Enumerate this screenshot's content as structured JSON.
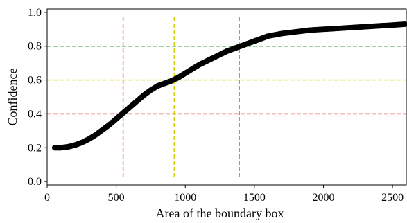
{
  "chart_data": {
    "type": "scatter",
    "title": "",
    "xlabel": "Area of the boundary box",
    "ylabel": "Confidence",
    "xlim": [
      0,
      2600
    ],
    "ylim": [
      -0.02,
      1.02
    ],
    "grid": false,
    "x_ticks": [
      0,
      500,
      1000,
      1500,
      2000,
      2500
    ],
    "x_tick_labels": [
      "0",
      "500",
      "1000",
      "1500",
      "2000",
      "2500"
    ],
    "y_ticks": [
      0.0,
      0.2,
      0.4,
      0.6,
      0.8,
      1.0
    ],
    "y_tick_labels": [
      "0.0",
      "0.2",
      "0.4",
      "0.6",
      "0.8",
      "1.0"
    ],
    "marker_color": "#000000",
    "series": [
      {
        "points": [
          [
            55,
            0.2
          ],
          [
            100,
            0.2
          ],
          [
            150,
            0.205
          ],
          [
            200,
            0.215
          ],
          [
            250,
            0.23
          ],
          [
            300,
            0.25
          ],
          [
            350,
            0.275
          ],
          [
            400,
            0.305
          ],
          [
            450,
            0.335
          ],
          [
            500,
            0.37
          ],
          [
            550,
            0.405
          ],
          [
            600,
            0.44
          ],
          [
            650,
            0.475
          ],
          [
            700,
            0.51
          ],
          [
            750,
            0.54
          ],
          [
            800,
            0.565
          ],
          [
            850,
            0.58
          ],
          [
            900,
            0.595
          ],
          [
            950,
            0.615
          ],
          [
            1000,
            0.64
          ],
          [
            1050,
            0.665
          ],
          [
            1100,
            0.69
          ],
          [
            1150,
            0.71
          ],
          [
            1200,
            0.73
          ],
          [
            1250,
            0.75
          ],
          [
            1300,
            0.77
          ],
          [
            1350,
            0.785
          ],
          [
            1400,
            0.8
          ],
          [
            1450,
            0.815
          ],
          [
            1500,
            0.83
          ],
          [
            1550,
            0.845
          ],
          [
            1600,
            0.86
          ],
          [
            1700,
            0.875
          ],
          [
            1800,
            0.885
          ],
          [
            1900,
            0.895
          ],
          [
            2000,
            0.9
          ],
          [
            2100,
            0.905
          ],
          [
            2200,
            0.91
          ],
          [
            2300,
            0.915
          ],
          [
            2400,
            0.92
          ],
          [
            2500,
            0.925
          ],
          [
            2590,
            0.93
          ]
        ]
      }
    ],
    "reference_lines": [
      {
        "orientation": "horizontal",
        "value": 0.4,
        "color": "#dd0000",
        "style": "dashed"
      },
      {
        "orientation": "horizontal",
        "value": 0.6,
        "color": "#cccc00",
        "style": "dashed"
      },
      {
        "orientation": "horizontal",
        "value": 0.8,
        "color": "#008800",
        "style": "dashed"
      },
      {
        "orientation": "vertical",
        "value": 550,
        "color": "#dd0000",
        "style": "dashed"
      },
      {
        "orientation": "vertical",
        "value": 920,
        "color": "#cccc00",
        "style": "dashed"
      },
      {
        "orientation": "vertical",
        "value": 1390,
        "color": "#008800",
        "style": "dashed"
      }
    ]
  }
}
